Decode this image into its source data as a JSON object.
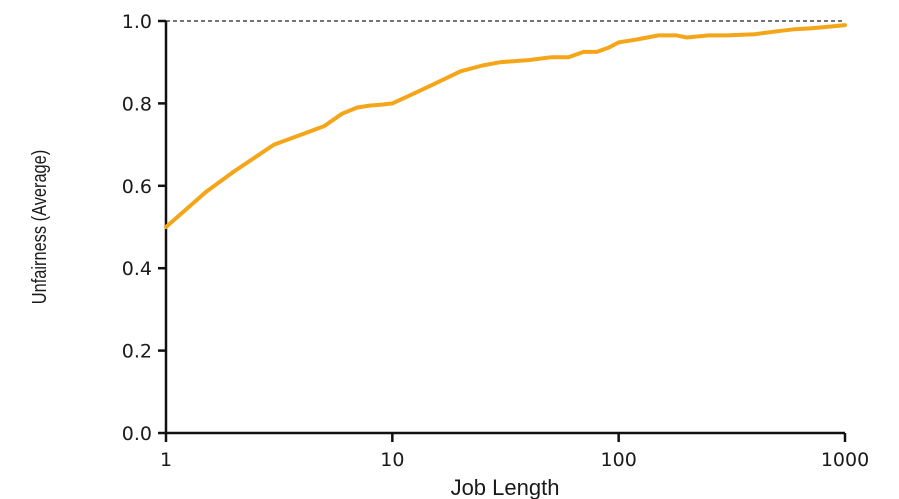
{
  "chart_data": {
    "type": "line",
    "title": "",
    "xlabel": "Job Length",
    "ylabel": "Unfairness (Average)",
    "x_scale": "log",
    "xlim": [
      1,
      1000
    ],
    "ylim": [
      0.0,
      1.0
    ],
    "x_ticks": [
      1,
      10,
      100,
      1000
    ],
    "x_tick_labels": [
      "1",
      "10",
      "100",
      "1000"
    ],
    "y_ticks": [
      0.0,
      0.2,
      0.4,
      0.6,
      0.8,
      1.0
    ],
    "y_tick_labels": [
      "0.0",
      "0.2",
      "0.4",
      "0.6",
      "0.8",
      "1.0"
    ],
    "grid": false,
    "reference_line": {
      "y": 1.0,
      "style": "dashed"
    },
    "line_color": "#f5a518",
    "series": [
      {
        "x": [
          1,
          1.5,
          2,
          3,
          4,
          5,
          6,
          7,
          8,
          9,
          10,
          12,
          15,
          20,
          25,
          30,
          40,
          50,
          60,
          70,
          80,
          90,
          100,
          120,
          150,
          180,
          200,
          250,
          300,
          400,
          500,
          600,
          700,
          800,
          1000
        ],
        "y": [
          0.5,
          0.585,
          0.635,
          0.7,
          0.725,
          0.745,
          0.775,
          0.79,
          0.795,
          0.797,
          0.8,
          0.82,
          0.845,
          0.878,
          0.892,
          0.9,
          0.905,
          0.912,
          0.912,
          0.925,
          0.925,
          0.935,
          0.948,
          0.955,
          0.965,
          0.965,
          0.96,
          0.965,
          0.965,
          0.968,
          0.975,
          0.98,
          0.982,
          0.985,
          0.99
        ]
      }
    ]
  }
}
